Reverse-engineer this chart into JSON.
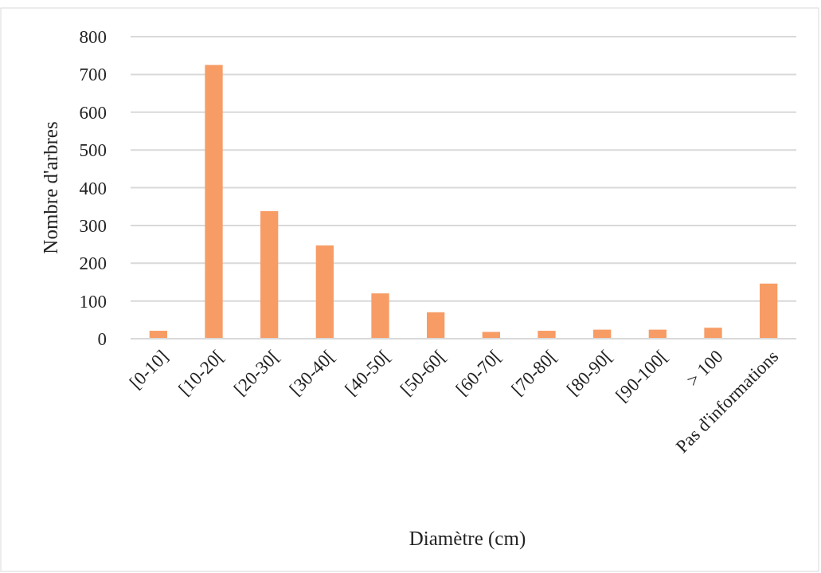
{
  "chart_data": {
    "type": "bar",
    "xlabel": "Diamètre (cm)",
    "ylabel": "Nombre d'arbres",
    "categories": [
      "[0-10]",
      "[10-20[",
      "[20-30[",
      "[30-40[",
      "[40-50[",
      "[50-60[",
      "[60-70[",
      "[70-80[",
      "[80-90[",
      "[90-100[",
      "> 100",
      "Pas d'informations"
    ],
    "values": [
      21,
      725,
      338,
      247,
      120,
      70,
      18,
      21,
      24,
      24,
      29,
      146
    ],
    "color": "#f79c65",
    "ylim": [
      0,
      800
    ],
    "yticks": [
      0,
      100,
      200,
      300,
      400,
      500,
      600,
      700,
      800
    ],
    "grid": "y"
  }
}
